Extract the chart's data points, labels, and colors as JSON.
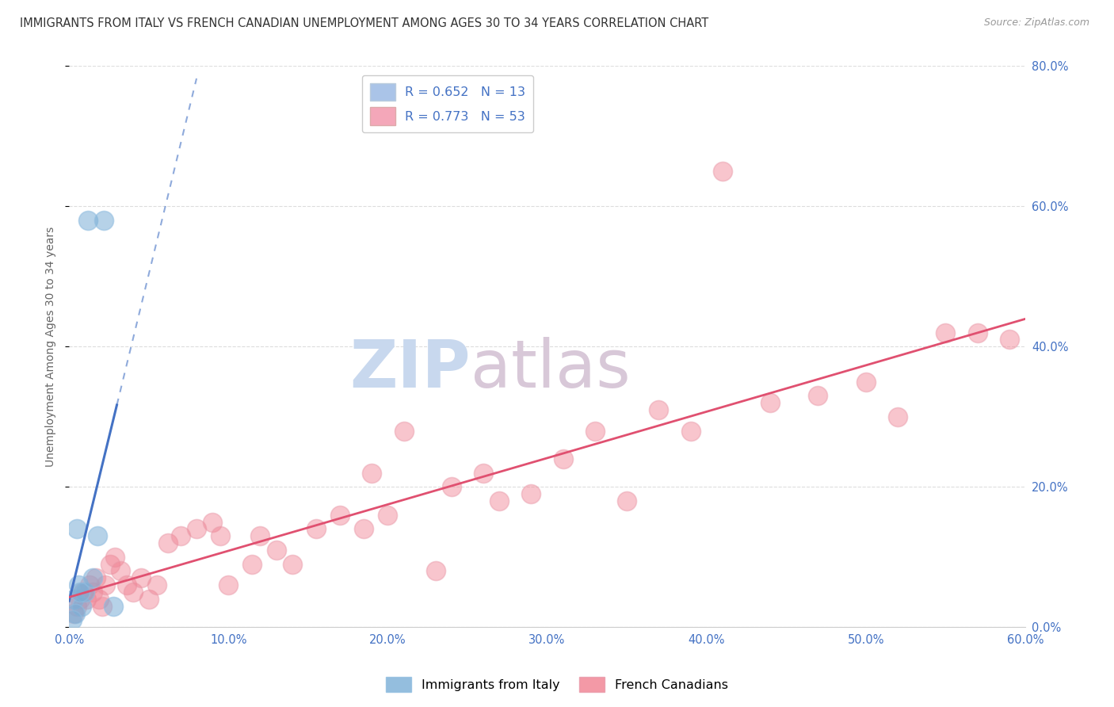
{
  "title": "IMMIGRANTS FROM ITALY VS FRENCH CANADIAN UNEMPLOYMENT AMONG AGES 30 TO 34 YEARS CORRELATION CHART",
  "source": "Source: ZipAtlas.com",
  "ylabel": "Unemployment Among Ages 30 to 34 years",
  "x_ticks": [
    0.0,
    10.0,
    20.0,
    30.0,
    40.0,
    50.0,
    60.0
  ],
  "y_ticks": [
    0.0,
    20.0,
    40.0,
    60.0,
    80.0
  ],
  "y_ticklabels": [
    "0.0%",
    "20.0%",
    "40.0%",
    "60.0%",
    "80.0%"
  ],
  "xlim": [
    0,
    60
  ],
  "ylim": [
    0,
    80
  ],
  "legend1_label": "R = 0.652   N = 13",
  "legend2_label": "R = 0.773   N = 53",
  "legend1_color": "#aac4e8",
  "legend2_color": "#f4a7b9",
  "italy_color": "#7aaed6",
  "canada_color": "#f08090",
  "italy_line_color": "#4472c4",
  "canada_line_color": "#e05070",
  "watermark_zip": "ZIP",
  "watermark_atlas": "atlas",
  "italy_scatter_x": [
    1.2,
    2.2,
    0.5,
    1.8,
    0.3,
    0.6,
    0.8,
    1.0,
    0.4,
    0.7,
    1.5,
    2.8,
    0.2
  ],
  "italy_scatter_y": [
    58,
    58,
    14,
    13,
    4,
    6,
    3,
    5,
    2,
    5,
    7,
    3,
    1
  ],
  "canada_scatter_x": [
    0.3,
    0.5,
    0.7,
    0.9,
    1.1,
    1.3,
    1.5,
    1.7,
    1.9,
    2.1,
    2.3,
    2.6,
    2.9,
    3.2,
    3.6,
    4.0,
    4.5,
    5.0,
    5.5,
    6.2,
    7.0,
    8.0,
    9.0,
    9.5,
    10.0,
    11.5,
    12.0,
    13.0,
    14.0,
    15.5,
    17.0,
    18.5,
    19.0,
    20.0,
    21.0,
    23.0,
    24.0,
    26.0,
    27.0,
    29.0,
    31.0,
    33.0,
    35.0,
    37.0,
    39.0,
    41.0,
    44.0,
    47.0,
    50.0,
    52.0,
    55.0,
    57.0,
    59.0
  ],
  "canada_scatter_y": [
    2,
    3,
    4,
    5,
    4,
    6,
    5,
    7,
    4,
    3,
    6,
    9,
    10,
    8,
    6,
    5,
    7,
    4,
    6,
    12,
    13,
    14,
    15,
    13,
    6,
    9,
    13,
    11,
    9,
    14,
    16,
    14,
    22,
    16,
    28,
    8,
    20,
    22,
    18,
    19,
    24,
    28,
    18,
    31,
    28,
    65,
    32,
    33,
    35,
    30,
    42,
    42,
    41
  ],
  "background_color": "#ffffff",
  "grid_color": "#dddddd",
  "tick_color": "#4472c4",
  "title_color": "#333333",
  "title_fontsize": 10.5,
  "axis_label_color": "#666666",
  "axis_label_fontsize": 10,
  "watermark_color_zip": "#c8d8ee",
  "watermark_color_atlas": "#d8c8d8",
  "watermark_fontsize": 60
}
